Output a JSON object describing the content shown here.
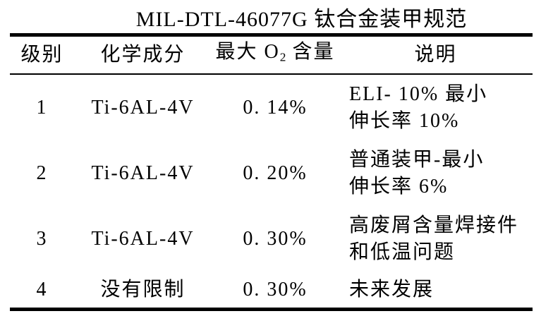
{
  "page": {
    "background_color": "#ffffff",
    "text_color": "#000000",
    "rule_color": "#000000"
  },
  "title": "MIL-DTL-46077G 钛合金装甲规范",
  "table": {
    "headers": {
      "grade": "级别",
      "composition": "化学成分",
      "max_o2_prefix": "最大 O",
      "max_o2_subscript": "2",
      "max_o2_suffix": " 含量",
      "description": "说明"
    },
    "rows": [
      {
        "grade": "1",
        "composition": "Ti-6AL-4V",
        "max_o2": "0. 14%",
        "description_line1": "ELI- 10% 最小",
        "description_line2": "伸长率 10%"
      },
      {
        "grade": "2",
        "composition": "Ti-6AL-4V",
        "max_o2": "0. 20%",
        "description_line1": "普通装甲-最小",
        "description_line2": "伸长率 6%"
      },
      {
        "grade": "3",
        "composition": "Ti-6AL-4V",
        "max_o2": "0. 30%",
        "description_line1": "高废屑含量焊接件",
        "description_line2": "和低温问题"
      },
      {
        "grade": "4",
        "composition": "没有限制",
        "max_o2": "0. 30%",
        "description_line1": "未来发展",
        "description_line2": ""
      }
    ]
  }
}
